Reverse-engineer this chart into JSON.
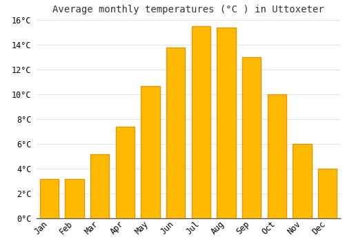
{
  "title": "Average monthly temperatures (°C ) in Uttoxeter",
  "months": [
    "Jan",
    "Feb",
    "Mar",
    "Apr",
    "May",
    "Jun",
    "Jul",
    "Aug",
    "Sep",
    "Oct",
    "Nov",
    "Dec"
  ],
  "values": [
    3.2,
    3.2,
    5.2,
    7.4,
    10.7,
    13.8,
    15.5,
    15.4,
    13.0,
    10.0,
    6.0,
    4.0
  ],
  "bar_color": "#FFBA00",
  "bar_edge_color": "#E8950A",
  "background_color": "#FFFFFF",
  "grid_color": "#DDDDDD",
  "ylim": [
    0,
    16
  ],
  "yticks": [
    0,
    2,
    4,
    6,
    8,
    10,
    12,
    14,
    16
  ],
  "title_fontsize": 10,
  "tick_fontsize": 8.5
}
